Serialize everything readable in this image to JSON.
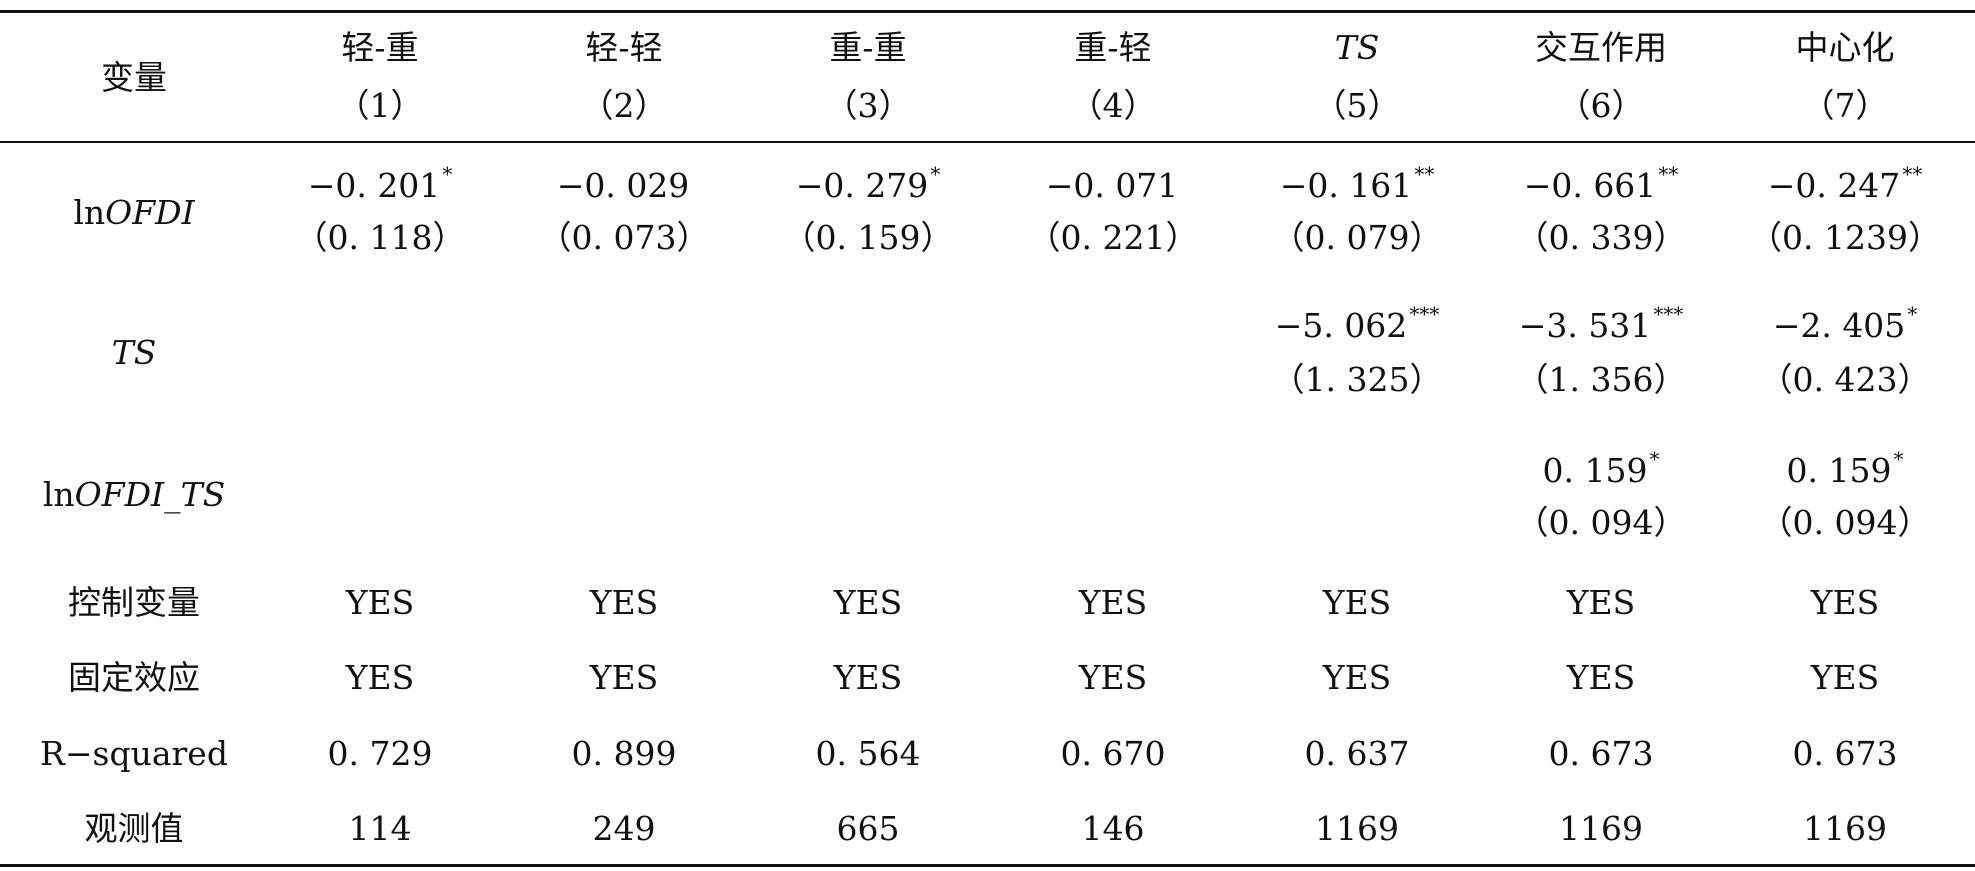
{
  "table": {
    "header": {
      "variable_label": "变量",
      "columns": [
        {
          "name": "轻-重",
          "number": "（1）"
        },
        {
          "name": "轻-轻",
          "number": "（2）"
        },
        {
          "name": "重-重",
          "number": "（3）"
        },
        {
          "name": "重-轻",
          "number": "（4）"
        },
        {
          "name": "TS",
          "number": "（5）"
        },
        {
          "name": "交互作用",
          "number": "（6）"
        },
        {
          "name": "中心化",
          "number": "（7）"
        }
      ]
    },
    "rows": {
      "lnofdi": {
        "label_prefix": "ln",
        "label_italic": "OFDI",
        "coef": [
          "−0. 201",
          "−0. 029",
          "−0. 279",
          "−0. 071",
          "−0. 161",
          "−0. 661",
          "−0. 247"
        ],
        "stars": [
          "*",
          "",
          "*",
          "",
          "**",
          "**",
          "**"
        ],
        "se": [
          "（0. 118）",
          "（0. 073）",
          "（0. 159）",
          "（0. 221）",
          "（0. 079）",
          "（0. 339）",
          "（0. 1239）"
        ]
      },
      "ts": {
        "label_italic": "TS",
        "coef": [
          "−5. 062",
          "−3. 531",
          "−2. 405"
        ],
        "stars": [
          "***",
          "***",
          "*"
        ],
        "se": [
          "（1. 325）",
          "（1. 356）",
          "（0. 423）"
        ]
      },
      "interaction": {
        "label_prefix": "ln",
        "label_italic": "OFDI_TS",
        "coef": [
          "0. 159",
          "0. 159"
        ],
        "stars": [
          "*",
          "*"
        ],
        "se": [
          "（0. 094）",
          "（0. 094）"
        ]
      },
      "controls": {
        "label": "控制变量",
        "values": [
          "YES",
          "YES",
          "YES",
          "YES",
          "YES",
          "YES",
          "YES"
        ]
      },
      "fixed_effects": {
        "label": "固定效应",
        "values": [
          "YES",
          "YES",
          "YES",
          "YES",
          "YES",
          "YES",
          "YES"
        ]
      },
      "r_squared": {
        "label": "R−squared",
        "values": [
          "0. 729",
          "0. 899",
          "0. 564",
          "0. 670",
          "0. 637",
          "0. 673",
          "0. 673"
        ]
      },
      "observations": {
        "label": "观测值",
        "values": [
          "114",
          "249",
          "665",
          "146",
          "1169",
          "1169",
          "1169"
        ]
      }
    }
  }
}
